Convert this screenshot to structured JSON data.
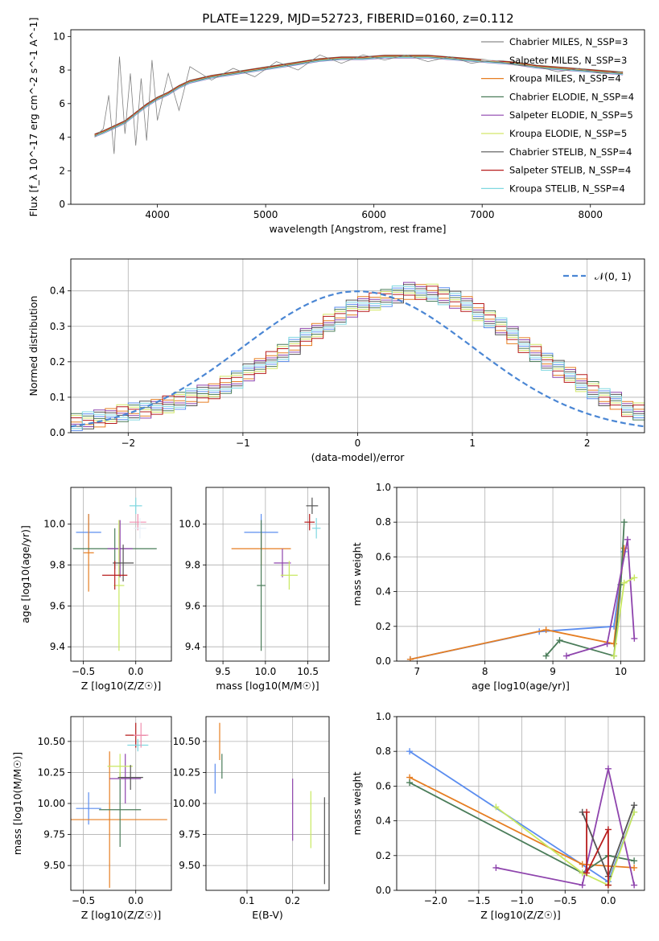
{
  "figure_title": "PLATE=1229, MJD=52723, FIBERID=0160, z=0.112",
  "series_colors": [
    "#8c8c8c",
    "#e8f0f8",
    "#e67e22",
    "#4a7c59",
    "#8e44ad",
    "#d4e86a",
    "#555555",
    "#b71c1c",
    "#80d8e0"
  ],
  "fit_colors": [
    "#e8f0f8",
    "#5b8def",
    "#e67e22",
    "#4a7c59",
    "#8e44ad",
    "#c8e860",
    "#555555",
    "#b71c1c",
    "#80d8e0",
    "#f08fb0"
  ],
  "chart_data": [
    {
      "id": "spectrum",
      "type": "line",
      "title": "PLATE=1229, MJD=52723, FIBERID=0160, z=0.112",
      "xlabel": "wavelength [Angstrom, rest frame]",
      "ylabel": "Flux [f_λ 10^-17 erg cm^-2 s^-1 A^-1]",
      "xlim": [
        3200,
        8500
      ],
      "ylim": [
        0,
        10.4
      ],
      "xticks": [
        "4000",
        "5000",
        "6000",
        "7000",
        "8000"
      ],
      "yticks": [
        "0",
        "2",
        "4",
        "6",
        "8",
        "10"
      ],
      "legend_placement": "right",
      "legend": [
        "Chabrier MILES, N_SSP=3",
        "Salpeter MILES, N_SSP=3",
        "Kroupa MILES, N_SSP=4",
        "Chabrier ELODIE, N_SSP=4",
        "Salpeter ELODIE, N_SSP=5",
        "Kroupa ELODIE, N_SSP=5",
        "Chabrier STELIB, N_SSP=4",
        "Salpeter STELIB, N_SSP=4",
        "Kroupa STELIB, N_SSP=4"
      ],
      "model_curve": {
        "x": [
          3420,
          3500,
          3600,
          3700,
          3800,
          3900,
          4000,
          4100,
          4200,
          4300,
          4500,
          4700,
          4900,
          5100,
          5300,
          5500,
          5700,
          5900,
          6100,
          6300,
          6500,
          6700,
          6900,
          7100,
          7300,
          7500,
          7700,
          7900,
          8100,
          8300
        ],
        "y": [
          4.1,
          4.3,
          4.6,
          4.9,
          5.4,
          5.9,
          6.3,
          6.6,
          7.0,
          7.3,
          7.6,
          7.8,
          8.0,
          8.2,
          8.4,
          8.6,
          8.7,
          8.7,
          8.8,
          8.8,
          8.8,
          8.7,
          8.6,
          8.5,
          8.4,
          8.2,
          8.1,
          8.0,
          7.9,
          7.8
        ]
      },
      "data_curve": {
        "x": [
          3420,
          3500,
          3550,
          3600,
          3650,
          3700,
          3750,
          3800,
          3850,
          3900,
          3950,
          4000,
          4100,
          4200,
          4300,
          4500,
          4700,
          4900,
          5100,
          5300,
          5500,
          5700,
          5900,
          6100,
          6300,
          6500,
          6700,
          6900,
          7100,
          7300,
          7500,
          7700,
          7900,
          8100,
          8300
        ],
        "y": [
          4.0,
          4.5,
          6.5,
          3.0,
          8.8,
          4.2,
          7.8,
          3.5,
          7.5,
          3.8,
          8.6,
          5.0,
          7.8,
          5.6,
          8.2,
          7.4,
          8.1,
          7.6,
          8.5,
          8.0,
          8.9,
          8.4,
          8.9,
          8.6,
          8.9,
          8.5,
          8.8,
          8.4,
          8.6,
          8.3,
          8.2,
          7.9,
          8.1,
          7.8,
          7.9
        ]
      }
    },
    {
      "id": "residuals",
      "type": "bar",
      "xlabel": "(data-model)/error",
      "ylabel": "Normed distribution",
      "xlim": [
        -2.5,
        2.5
      ],
      "ylim": [
        0,
        0.49
      ],
      "xticks": [
        "−2",
        "−1",
        "0",
        "1",
        "2"
      ],
      "yticks": [
        "0.0",
        "0.1",
        "0.2",
        "0.3",
        "0.4"
      ],
      "legend_placement": "top-right",
      "legend": [
        "𝒩(0, 1)"
      ],
      "bin_edges_start": -2.5,
      "bin_width": 0.1,
      "histogram": [
        0.03,
        0.035,
        0.04,
        0.05,
        0.055,
        0.06,
        0.065,
        0.07,
        0.08,
        0.09,
        0.1,
        0.11,
        0.12,
        0.135,
        0.15,
        0.17,
        0.185,
        0.205,
        0.225,
        0.245,
        0.27,
        0.29,
        0.31,
        0.33,
        0.35,
        0.36,
        0.37,
        0.38,
        0.39,
        0.4,
        0.4,
        0.395,
        0.385,
        0.375,
        0.36,
        0.34,
        0.32,
        0.3,
        0.275,
        0.25,
        0.225,
        0.2,
        0.18,
        0.16,
        0.14,
        0.12,
        0.1,
        0.09,
        0.07,
        0.06
      ]
    },
    {
      "id": "age_vs_Z",
      "type": "scatter",
      "xlabel": "Z [log10(Z/Z☉)]",
      "ylabel": "age [log10(age/yr)]",
      "xlim": [
        -0.62,
        0.34
      ],
      "ylim": [
        9.33,
        10.18
      ],
      "xticks": [
        "−0.5",
        "0.0"
      ],
      "yticks": [
        "9.4",
        "9.6",
        "9.8",
        "10.0"
      ],
      "points": [
        {
          "x": -0.45,
          "y": 9.96,
          "xerr": 0.12,
          "yerr": 0.09
        },
        {
          "x": -0.45,
          "y": 9.86,
          "xerr": 0.05,
          "yerr": 0.19
        },
        {
          "x": -0.2,
          "y": 9.88,
          "xerr": 0.4,
          "yerr": 0.1
        },
        {
          "x": -0.15,
          "y": 9.88,
          "xerr": 0.12,
          "yerr": 0.14
        },
        {
          "x": -0.16,
          "y": 9.7,
          "xerr": 0.05,
          "yerr": 0.32
        },
        {
          "x": -0.12,
          "y": 9.81,
          "xerr": 0.1,
          "yerr": 0.09
        },
        {
          "x": -0.2,
          "y": 9.75,
          "xerr": 0.12,
          "yerr": 0.07
        },
        {
          "x": 0.0,
          "y": 10.09,
          "xerr": 0.06,
          "yerr": 0.04
        },
        {
          "x": 0.02,
          "y": 10.01,
          "xerr": 0.08,
          "yerr": 0.04
        },
        {
          "x": 0.04,
          "y": 9.98,
          "xerr": 0.06,
          "yerr": 0.05
        }
      ]
    },
    {
      "id": "age_vs_mass",
      "type": "scatter",
      "xlabel": "mass [log10(M/M☉)]",
      "ylabel": "",
      "xlim": [
        9.3,
        10.75
      ],
      "ylim": [
        9.33,
        10.18
      ],
      "xticks": [
        "9.5",
        "10.0",
        "10.5"
      ],
      "yticks": [
        "9.4",
        "9.6",
        "9.8",
        "10.0"
      ],
      "points": [
        {
          "x": 9.95,
          "y": 9.96,
          "xerr": 0.2,
          "yerr": 0.09
        },
        {
          "x": 9.95,
          "y": 9.88,
          "xerr": 0.35,
          "yerr": 0.08
        },
        {
          "x": 9.95,
          "y": 9.7,
          "xerr": 0.05,
          "yerr": 0.32
        },
        {
          "x": 10.2,
          "y": 9.81,
          "xerr": 0.1,
          "yerr": 0.07
        },
        {
          "x": 10.28,
          "y": 9.75,
          "xerr": 0.1,
          "yerr": 0.07
        },
        {
          "x": 10.55,
          "y": 10.09,
          "xerr": 0.07,
          "yerr": 0.04
        },
        {
          "x": 10.52,
          "y": 10.01,
          "xerr": 0.06,
          "yerr": 0.04
        },
        {
          "x": 10.6,
          "y": 9.98,
          "xerr": 0.05,
          "yerr": 0.05
        }
      ]
    },
    {
      "id": "weight_vs_age",
      "type": "line",
      "xlabel": "age [log10(age/yr)]",
      "ylabel": "mass weight",
      "xlim": [
        6.7,
        10.35
      ],
      "ylim": [
        0,
        1.0
      ],
      "xticks": [
        "7",
        "8",
        "9",
        "10"
      ],
      "yticks": [
        "0.0",
        "0.2",
        "0.4",
        "0.6",
        "0.8",
        "1.0"
      ],
      "series": [
        {
          "x": [
            6.9,
            8.8,
            9.9,
            10.05
          ],
          "y": [
            0.01,
            0.17,
            0.2,
            0.63
          ]
        },
        {
          "x": [
            6.9,
            8.9,
            9.9,
            10.05
          ],
          "y": [
            0.01,
            0.18,
            0.1,
            0.65
          ]
        },
        {
          "x": [
            8.9,
            9.1,
            9.9,
            10.0,
            10.05
          ],
          "y": [
            0.03,
            0.12,
            0.03,
            0.44,
            0.8
          ]
        },
        {
          "x": [
            9.2,
            9.8,
            10.1,
            10.2
          ],
          "y": [
            0.03,
            0.1,
            0.7,
            0.13
          ]
        },
        {
          "x": [
            9.9,
            10.05,
            10.2
          ],
          "y": [
            0.03,
            0.45,
            0.48
          ]
        }
      ]
    },
    {
      "id": "mass_vs_Z",
      "type": "scatter",
      "xlabel": "Z [log10(Z/Z☉)]",
      "ylabel": "mass [log10(M/M☉)]",
      "xlim": [
        -0.62,
        0.34
      ],
      "ylim": [
        9.3,
        10.7
      ],
      "xticks": [
        "−0.5",
        "0.0"
      ],
      "yticks": [
        "9.50",
        "9.75",
        "10.00",
        "10.25",
        "10.50"
      ],
      "points": [
        {
          "x": -0.45,
          "y": 9.96,
          "xerr": 0.12,
          "yerr": 0.13
        },
        {
          "x": -0.25,
          "y": 9.87,
          "xerr": 0.55,
          "yerr": 0.55
        },
        {
          "x": -0.15,
          "y": 9.95,
          "xerr": 0.2,
          "yerr": 0.3
        },
        {
          "x": -0.1,
          "y": 10.2,
          "xerr": 0.15,
          "yerr": 0.2
        },
        {
          "x": -0.15,
          "y": 10.3,
          "xerr": 0.12,
          "yerr": 0.1
        },
        {
          "x": -0.05,
          "y": 10.21,
          "xerr": 0.12,
          "yerr": 0.1
        },
        {
          "x": 0.0,
          "y": 10.55,
          "xerr": 0.1,
          "yerr": 0.1
        },
        {
          "x": 0.02,
          "y": 10.47,
          "xerr": 0.1,
          "yerr": 0.05
        },
        {
          "x": 0.05,
          "y": 10.55,
          "xerr": 0.07,
          "yerr": 0.1
        }
      ]
    },
    {
      "id": "mass_vs_ebv",
      "type": "scatter",
      "xlabel": "E(B-V)",
      "ylabel": "",
      "xlim": [
        0.01,
        0.28
      ],
      "ylim": [
        9.3,
        10.7
      ],
      "xticks": [
        "0.1",
        "0.2"
      ],
      "yticks": [
        "9.50",
        "9.75",
        "10.00",
        "10.25",
        "10.50"
      ],
      "points": [
        {
          "x": 0.03,
          "y": 10.2,
          "xerr": 0,
          "yerr": 0.12
        },
        {
          "x": 0.04,
          "y": 10.5,
          "xerr": 0,
          "yerr": 0.15
        },
        {
          "x": 0.045,
          "y": 10.3,
          "xerr": 0,
          "yerr": 0.1
        },
        {
          "x": 0.2,
          "y": 9.95,
          "xerr": 0,
          "yerr": 0.25
        },
        {
          "x": 0.24,
          "y": 9.87,
          "xerr": 0,
          "yerr": 0.23
        },
        {
          "x": 0.27,
          "y": 9.7,
          "xerr": 0,
          "yerr": 0.35
        }
      ]
    },
    {
      "id": "weight_vs_Z",
      "type": "line",
      "xlabel": "Z [log10(Z/Z☉)]",
      "ylabel": "mass weight",
      "xlim": [
        -2.45,
        0.42
      ],
      "ylim": [
        0,
        1.0
      ],
      "xticks": [
        "−2.0",
        "−1.5",
        "−1.0",
        "−0.5",
        "0.0"
      ],
      "yticks": [
        "0.0",
        "0.2",
        "0.4",
        "0.6",
        "0.8",
        "1.0"
      ],
      "series": [
        {
          "x": [
            -2.3,
            0.0,
            0.3
          ],
          "y": [
            0.8,
            0.05,
            0.45
          ]
        },
        {
          "x": [
            -2.3,
            -0.3,
            0.3
          ],
          "y": [
            0.65,
            0.15,
            0.13
          ]
        },
        {
          "x": [
            -2.3,
            -0.3,
            0.0,
            0.3
          ],
          "y": [
            0.62,
            0.1,
            0.2,
            0.17
          ]
        },
        {
          "x": [
            -1.3,
            -0.3,
            0.0,
            0.3
          ],
          "y": [
            0.13,
            0.03,
            0.7,
            0.03
          ]
        },
        {
          "x": [
            -1.3,
            -0.3,
            0.0,
            0.3
          ],
          "y": [
            0.48,
            0.1,
            0.03,
            0.45
          ]
        },
        {
          "x": [
            -0.3,
            0.0,
            0.3
          ],
          "y": [
            0.45,
            0.08,
            0.49
          ]
        },
        {
          "x": [
            -0.25,
            -0.25,
            0.0,
            0.0
          ],
          "y": [
            0.45,
            0.1,
            0.35,
            0.03
          ]
        }
      ]
    }
  ]
}
